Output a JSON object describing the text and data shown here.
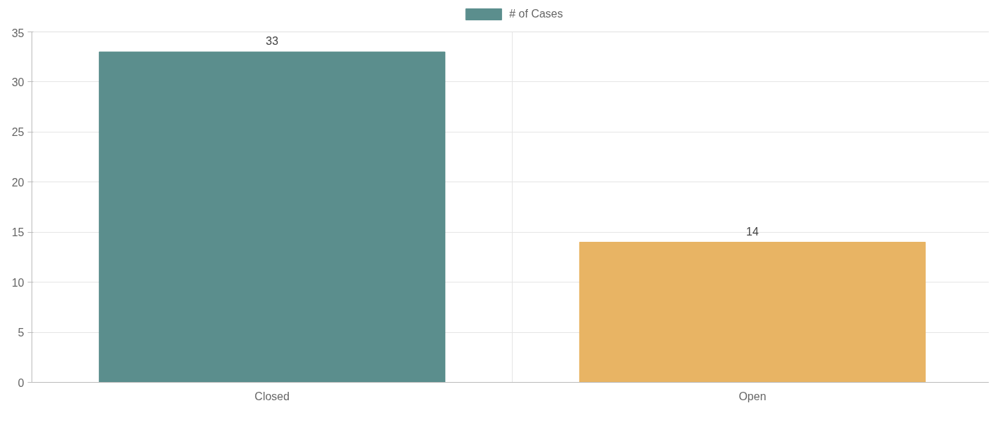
{
  "chart_data": {
    "type": "bar",
    "categories": [
      "Closed",
      "Open"
    ],
    "series": [
      {
        "name": "# of Cases",
        "colors": [
          "#5b8e8d",
          "#e8b464"
        ],
        "values": [
          33,
          14
        ]
      }
    ],
    "ylim": [
      0,
      35
    ],
    "yticks": [
      0,
      5,
      10,
      15,
      20,
      25,
      30,
      35
    ],
    "grid": true,
    "legend": "top",
    "data_labels": true
  }
}
